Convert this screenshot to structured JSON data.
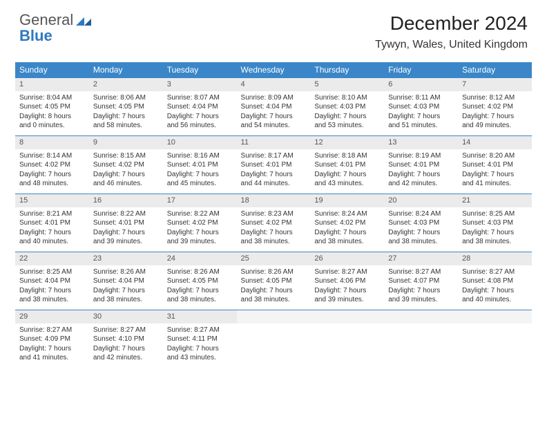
{
  "brand": {
    "word1": "General",
    "word2": "Blue"
  },
  "title": "December 2024",
  "location": "Tywyn, Wales, United Kingdom",
  "colors": {
    "header_bg": "#3a86c8",
    "header_text": "#ffffff",
    "daynum_bg": "#ebebeb",
    "row_border": "#3a86c8",
    "brand_blue": "#2d79c0",
    "text": "#333333"
  },
  "typography": {
    "title_size_pt": 21,
    "location_size_pt": 12,
    "dayhead_size_pt": 9,
    "body_size_pt": 7.5
  },
  "day_headers": [
    "Sunday",
    "Monday",
    "Tuesday",
    "Wednesday",
    "Thursday",
    "Friday",
    "Saturday"
  ],
  "weeks": [
    [
      {
        "n": "1",
        "sr": "Sunrise: 8:04 AM",
        "ss": "Sunset: 4:05 PM",
        "dl1": "Daylight: 8 hours",
        "dl2": "and 0 minutes."
      },
      {
        "n": "2",
        "sr": "Sunrise: 8:06 AM",
        "ss": "Sunset: 4:05 PM",
        "dl1": "Daylight: 7 hours",
        "dl2": "and 58 minutes."
      },
      {
        "n": "3",
        "sr": "Sunrise: 8:07 AM",
        "ss": "Sunset: 4:04 PM",
        "dl1": "Daylight: 7 hours",
        "dl2": "and 56 minutes."
      },
      {
        "n": "4",
        "sr": "Sunrise: 8:09 AM",
        "ss": "Sunset: 4:04 PM",
        "dl1": "Daylight: 7 hours",
        "dl2": "and 54 minutes."
      },
      {
        "n": "5",
        "sr": "Sunrise: 8:10 AM",
        "ss": "Sunset: 4:03 PM",
        "dl1": "Daylight: 7 hours",
        "dl2": "and 53 minutes."
      },
      {
        "n": "6",
        "sr": "Sunrise: 8:11 AM",
        "ss": "Sunset: 4:03 PM",
        "dl1": "Daylight: 7 hours",
        "dl2": "and 51 minutes."
      },
      {
        "n": "7",
        "sr": "Sunrise: 8:12 AM",
        "ss": "Sunset: 4:02 PM",
        "dl1": "Daylight: 7 hours",
        "dl2": "and 49 minutes."
      }
    ],
    [
      {
        "n": "8",
        "sr": "Sunrise: 8:14 AM",
        "ss": "Sunset: 4:02 PM",
        "dl1": "Daylight: 7 hours",
        "dl2": "and 48 minutes."
      },
      {
        "n": "9",
        "sr": "Sunrise: 8:15 AM",
        "ss": "Sunset: 4:02 PM",
        "dl1": "Daylight: 7 hours",
        "dl2": "and 46 minutes."
      },
      {
        "n": "10",
        "sr": "Sunrise: 8:16 AM",
        "ss": "Sunset: 4:01 PM",
        "dl1": "Daylight: 7 hours",
        "dl2": "and 45 minutes."
      },
      {
        "n": "11",
        "sr": "Sunrise: 8:17 AM",
        "ss": "Sunset: 4:01 PM",
        "dl1": "Daylight: 7 hours",
        "dl2": "and 44 minutes."
      },
      {
        "n": "12",
        "sr": "Sunrise: 8:18 AM",
        "ss": "Sunset: 4:01 PM",
        "dl1": "Daylight: 7 hours",
        "dl2": "and 43 minutes."
      },
      {
        "n": "13",
        "sr": "Sunrise: 8:19 AM",
        "ss": "Sunset: 4:01 PM",
        "dl1": "Daylight: 7 hours",
        "dl2": "and 42 minutes."
      },
      {
        "n": "14",
        "sr": "Sunrise: 8:20 AM",
        "ss": "Sunset: 4:01 PM",
        "dl1": "Daylight: 7 hours",
        "dl2": "and 41 minutes."
      }
    ],
    [
      {
        "n": "15",
        "sr": "Sunrise: 8:21 AM",
        "ss": "Sunset: 4:01 PM",
        "dl1": "Daylight: 7 hours",
        "dl2": "and 40 minutes."
      },
      {
        "n": "16",
        "sr": "Sunrise: 8:22 AM",
        "ss": "Sunset: 4:01 PM",
        "dl1": "Daylight: 7 hours",
        "dl2": "and 39 minutes."
      },
      {
        "n": "17",
        "sr": "Sunrise: 8:22 AM",
        "ss": "Sunset: 4:02 PM",
        "dl1": "Daylight: 7 hours",
        "dl2": "and 39 minutes."
      },
      {
        "n": "18",
        "sr": "Sunrise: 8:23 AM",
        "ss": "Sunset: 4:02 PM",
        "dl1": "Daylight: 7 hours",
        "dl2": "and 38 minutes."
      },
      {
        "n": "19",
        "sr": "Sunrise: 8:24 AM",
        "ss": "Sunset: 4:02 PM",
        "dl1": "Daylight: 7 hours",
        "dl2": "and 38 minutes."
      },
      {
        "n": "20",
        "sr": "Sunrise: 8:24 AM",
        "ss": "Sunset: 4:03 PM",
        "dl1": "Daylight: 7 hours",
        "dl2": "and 38 minutes."
      },
      {
        "n": "21",
        "sr": "Sunrise: 8:25 AM",
        "ss": "Sunset: 4:03 PM",
        "dl1": "Daylight: 7 hours",
        "dl2": "and 38 minutes."
      }
    ],
    [
      {
        "n": "22",
        "sr": "Sunrise: 8:25 AM",
        "ss": "Sunset: 4:04 PM",
        "dl1": "Daylight: 7 hours",
        "dl2": "and 38 minutes."
      },
      {
        "n": "23",
        "sr": "Sunrise: 8:26 AM",
        "ss": "Sunset: 4:04 PM",
        "dl1": "Daylight: 7 hours",
        "dl2": "and 38 minutes."
      },
      {
        "n": "24",
        "sr": "Sunrise: 8:26 AM",
        "ss": "Sunset: 4:05 PM",
        "dl1": "Daylight: 7 hours",
        "dl2": "and 38 minutes."
      },
      {
        "n": "25",
        "sr": "Sunrise: 8:26 AM",
        "ss": "Sunset: 4:05 PM",
        "dl1": "Daylight: 7 hours",
        "dl2": "and 38 minutes."
      },
      {
        "n": "26",
        "sr": "Sunrise: 8:27 AM",
        "ss": "Sunset: 4:06 PM",
        "dl1": "Daylight: 7 hours",
        "dl2": "and 39 minutes."
      },
      {
        "n": "27",
        "sr": "Sunrise: 8:27 AM",
        "ss": "Sunset: 4:07 PM",
        "dl1": "Daylight: 7 hours",
        "dl2": "and 39 minutes."
      },
      {
        "n": "28",
        "sr": "Sunrise: 8:27 AM",
        "ss": "Sunset: 4:08 PM",
        "dl1": "Daylight: 7 hours",
        "dl2": "and 40 minutes."
      }
    ],
    [
      {
        "n": "29",
        "sr": "Sunrise: 8:27 AM",
        "ss": "Sunset: 4:09 PM",
        "dl1": "Daylight: 7 hours",
        "dl2": "and 41 minutes."
      },
      {
        "n": "30",
        "sr": "Sunrise: 8:27 AM",
        "ss": "Sunset: 4:10 PM",
        "dl1": "Daylight: 7 hours",
        "dl2": "and 42 minutes."
      },
      {
        "n": "31",
        "sr": "Sunrise: 8:27 AM",
        "ss": "Sunset: 4:11 PM",
        "dl1": "Daylight: 7 hours",
        "dl2": "and 43 minutes."
      },
      null,
      null,
      null,
      null
    ]
  ]
}
